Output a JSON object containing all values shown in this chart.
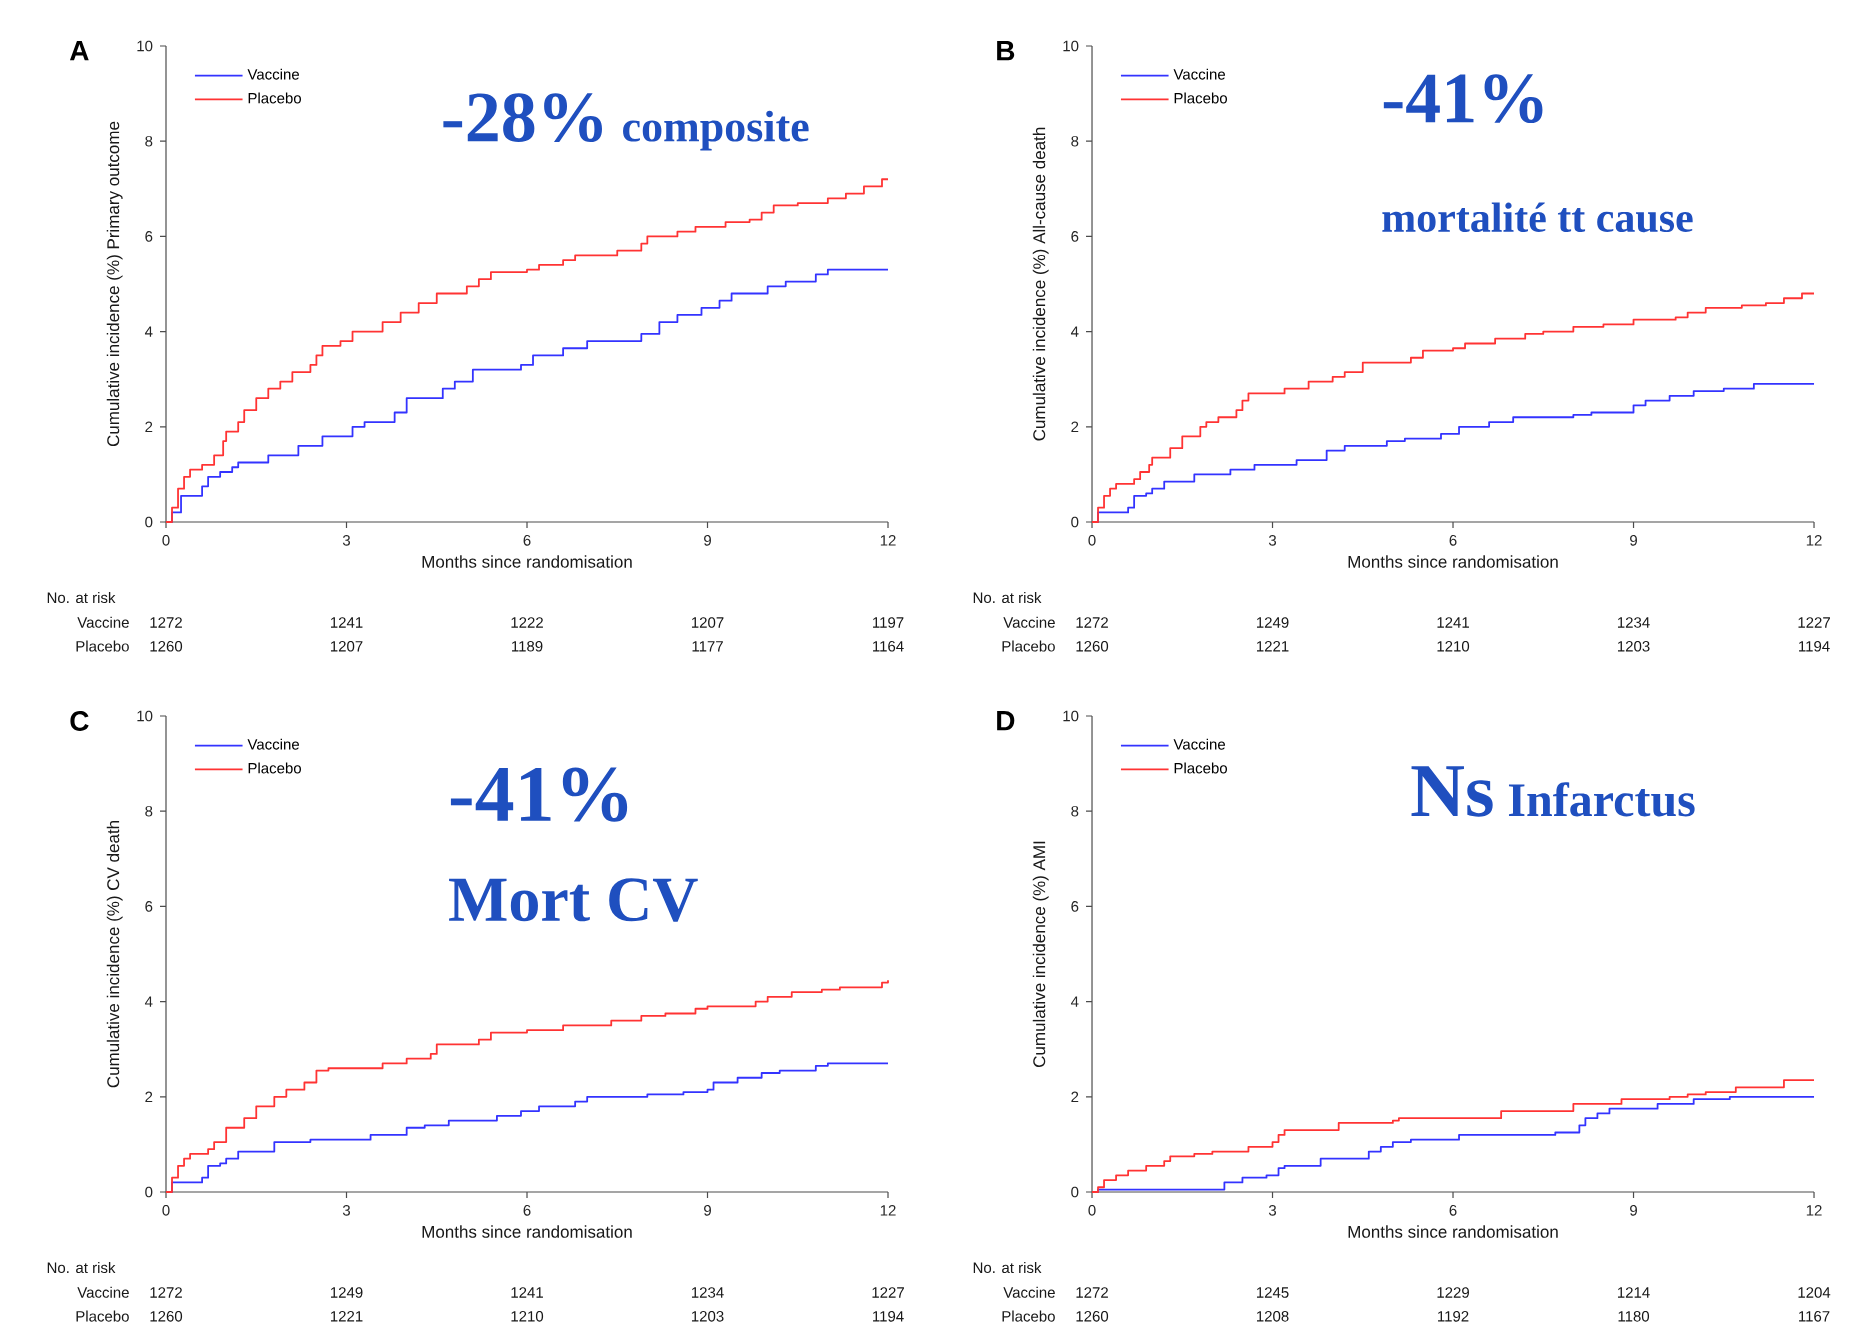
{
  "chart_data": [
    {
      "type": "step",
      "title": "A",
      "xlabel": "Months since randomisation",
      "ylabel": "Cumulative incidence (%)  Primary outcome",
      "xlim": [
        0,
        12
      ],
      "ylim": [
        0,
        10
      ],
      "xticks": [
        0,
        3,
        6,
        9,
        12
      ],
      "yticks": [
        0,
        2,
        4,
        6,
        8,
        10
      ],
      "legend": "top left",
      "series": [
        {
          "name": "Vaccine",
          "color": "#3333ff",
          "x": [
            0,
            0.1,
            0.25,
            0.6,
            0.7,
            0.9,
            1.1,
            1.2,
            1.7,
            2.2,
            2.6,
            3.1,
            3.3,
            3.8,
            4.0,
            4.6,
            4.8,
            5.1,
            5.9,
            6.1,
            6.6,
            7.0,
            7.9,
            8.2,
            8.5,
            8.9,
            9.2,
            9.4,
            10.0,
            10.3,
            10.8,
            11.0,
            12
          ],
          "values": [
            0,
            0.2,
            0.55,
            0.75,
            0.95,
            1.05,
            1.15,
            1.25,
            1.4,
            1.6,
            1.8,
            2.0,
            2.1,
            2.3,
            2.6,
            2.8,
            2.95,
            3.2,
            3.3,
            3.5,
            3.65,
            3.8,
            3.95,
            4.2,
            4.35,
            4.5,
            4.65,
            4.8,
            4.95,
            5.05,
            5.2,
            5.3,
            5.3
          ]
        },
        {
          "name": "Placebo",
          "color": "#ff3333",
          "x": [
            0,
            0.1,
            0.2,
            0.3,
            0.4,
            0.6,
            0.8,
            0.95,
            1.0,
            1.2,
            1.3,
            1.5,
            1.7,
            1.9,
            2.1,
            2.4,
            2.5,
            2.6,
            2.9,
            3.1,
            3.6,
            3.9,
            4.2,
            4.5,
            5.0,
            5.2,
            5.4,
            6.0,
            6.2,
            6.6,
            6.8,
            7.5,
            7.9,
            8.0,
            8.5,
            8.8,
            9.3,
            9.7,
            9.9,
            10.1,
            10.5,
            11.0,
            11.3,
            11.6,
            11.9,
            12
          ],
          "values": [
            0,
            0.3,
            0.7,
            0.95,
            1.1,
            1.2,
            1.4,
            1.7,
            1.9,
            2.1,
            2.35,
            2.6,
            2.8,
            2.95,
            3.15,
            3.3,
            3.5,
            3.7,
            3.8,
            4.0,
            4.2,
            4.4,
            4.6,
            4.8,
            4.95,
            5.1,
            5.25,
            5.3,
            5.4,
            5.5,
            5.6,
            5.7,
            5.85,
            6.0,
            6.1,
            6.2,
            6.3,
            6.35,
            6.5,
            6.65,
            6.7,
            6.8,
            6.9,
            7.05,
            7.2,
            7.2
          ]
        }
      ],
      "annotations": [
        "-28%",
        "composite",
        "No. at risk",
        "Vaccine",
        "1272",
        "1241",
        "1222",
        "1207",
        "1197",
        "Placebo",
        "1260",
        "1207",
        "1189",
        "1177",
        "1164"
      ]
    },
    {
      "type": "step",
      "title": "B",
      "xlabel": "Months since randomisation",
      "ylabel": "Cumulative incidence (%)  All-cause death",
      "xlim": [
        0,
        12
      ],
      "ylim": [
        0,
        10
      ],
      "xticks": [
        0,
        3,
        6,
        9,
        12
      ],
      "yticks": [
        0,
        2,
        4,
        6,
        8,
        10
      ],
      "legend": "top left",
      "series": [
        {
          "name": "Vaccine",
          "color": "#3333ff",
          "x": [
            0,
            0.1,
            0.6,
            0.7,
            0.9,
            1.0,
            1.2,
            1.7,
            2.3,
            2.7,
            3.4,
            3.9,
            4.2,
            4.9,
            5.2,
            5.8,
            6.1,
            6.6,
            7.0,
            8.0,
            8.3,
            9.0,
            9.2,
            9.6,
            10.0,
            10.5,
            11.0,
            12
          ],
          "values": [
            0,
            0.2,
            0.3,
            0.55,
            0.6,
            0.7,
            0.85,
            1.0,
            1.1,
            1.2,
            1.3,
            1.5,
            1.6,
            1.7,
            1.75,
            1.85,
            2.0,
            2.1,
            2.2,
            2.25,
            2.3,
            2.45,
            2.55,
            2.65,
            2.75,
            2.8,
            2.9,
            2.9
          ]
        },
        {
          "name": "Placebo",
          "color": "#ff3333",
          "x": [
            0,
            0.1,
            0.2,
            0.3,
            0.4,
            0.7,
            0.8,
            0.95,
            1.0,
            1.3,
            1.5,
            1.8,
            1.9,
            2.1,
            2.4,
            2.5,
            2.6,
            3.2,
            3.6,
            4.0,
            4.2,
            4.5,
            5.3,
            5.5,
            6.0,
            6.2,
            6.7,
            7.2,
            7.5,
            8.0,
            8.5,
            9.0,
            9.7,
            9.9,
            10.2,
            10.8,
            11.2,
            11.5,
            11.8,
            12
          ],
          "values": [
            0,
            0.3,
            0.55,
            0.7,
            0.8,
            0.9,
            1.05,
            1.2,
            1.35,
            1.55,
            1.8,
            2.0,
            2.1,
            2.2,
            2.35,
            2.55,
            2.7,
            2.8,
            2.95,
            3.05,
            3.15,
            3.35,
            3.45,
            3.6,
            3.65,
            3.75,
            3.85,
            3.95,
            4.0,
            4.1,
            4.15,
            4.25,
            4.3,
            4.4,
            4.5,
            4.55,
            4.6,
            4.7,
            4.8,
            4.8
          ]
        }
      ],
      "annotations": [
        "-41%",
        "mortalité tt cause",
        "No. at risk",
        "Vaccine",
        "1272",
        "1249",
        "1241",
        "1234",
        "1227",
        "Placebo",
        "1260",
        "1221",
        "1210",
        "1203",
        "1194"
      ]
    },
    {
      "type": "step",
      "title": "C",
      "xlabel": "Months since randomisation",
      "ylabel": "Cumulative incidence (%)  CV death",
      "xlim": [
        0,
        12
      ],
      "ylim": [
        0,
        10
      ],
      "xticks": [
        0,
        3,
        6,
        9,
        12
      ],
      "yticks": [
        0,
        2,
        4,
        6,
        8,
        10
      ],
      "legend": "top left",
      "series": [
        {
          "name": "Vaccine",
          "color": "#3333ff",
          "x": [
            0,
            0.1,
            0.6,
            0.7,
            0.9,
            1.0,
            1.2,
            1.8,
            2.4,
            3.4,
            4.0,
            4.3,
            4.7,
            5.5,
            5.9,
            6.2,
            6.8,
            7.0,
            8.0,
            8.6,
            9.0,
            9.1,
            9.5,
            9.9,
            10.2,
            10.8,
            11.0,
            12
          ],
          "values": [
            0,
            0.2,
            0.3,
            0.55,
            0.6,
            0.7,
            0.85,
            1.05,
            1.1,
            1.2,
            1.35,
            1.4,
            1.5,
            1.6,
            1.7,
            1.8,
            1.9,
            2.0,
            2.05,
            2.1,
            2.15,
            2.3,
            2.4,
            2.5,
            2.55,
            2.65,
            2.7,
            2.7
          ]
        },
        {
          "name": "Placebo",
          "color": "#ff3333",
          "x": [
            0,
            0.1,
            0.2,
            0.3,
            0.4,
            0.7,
            0.8,
            1.0,
            1.3,
            1.5,
            1.8,
            2.0,
            2.3,
            2.5,
            2.7,
            3.6,
            4.0,
            4.4,
            4.5,
            5.2,
            5.4,
            6.0,
            6.6,
            7.4,
            7.9,
            8.3,
            8.8,
            9.0,
            9.8,
            10.0,
            10.4,
            10.9,
            11.2,
            11.9,
            12
          ],
          "values": [
            0,
            0.3,
            0.55,
            0.7,
            0.8,
            0.9,
            1.05,
            1.35,
            1.55,
            1.8,
            2.0,
            2.15,
            2.3,
            2.55,
            2.6,
            2.7,
            2.8,
            2.9,
            3.1,
            3.2,
            3.35,
            3.4,
            3.5,
            3.6,
            3.7,
            3.75,
            3.85,
            3.9,
            4.0,
            4.1,
            4.2,
            4.25,
            4.3,
            4.4,
            4.45
          ]
        }
      ],
      "annotations": [
        "-41%",
        "Mort CV",
        "No. at risk",
        "Vaccine",
        "1272",
        "1249",
        "1241",
        "1234",
        "1227",
        "Placebo",
        "1260",
        "1221",
        "1210",
        "1203",
        "1194"
      ]
    },
    {
      "type": "step",
      "title": "D",
      "xlabel": "Months since randomisation",
      "ylabel": "Cumulative incidence (%)  AMI",
      "xlim": [
        0,
        12
      ],
      "ylim": [
        0,
        10
      ],
      "xticks": [
        0,
        3,
        6,
        9,
        12
      ],
      "yticks": [
        0,
        2,
        4,
        6,
        8,
        10
      ],
      "legend": "top left",
      "series": [
        {
          "name": "Vaccine",
          "color": "#3333ff",
          "x": [
            0,
            0.1,
            2.2,
            2.5,
            2.9,
            3.1,
            3.2,
            3.8,
            4.6,
            4.8,
            5.0,
            5.3,
            6.1,
            7.7,
            8.1,
            8.2,
            8.4,
            8.6,
            9.4,
            10.0,
            10.6,
            12
          ],
          "values": [
            0,
            0.05,
            0.2,
            0.3,
            0.35,
            0.5,
            0.55,
            0.7,
            0.85,
            0.95,
            1.05,
            1.1,
            1.2,
            1.25,
            1.4,
            1.55,
            1.65,
            1.75,
            1.85,
            1.95,
            2.0,
            2.0
          ]
        },
        {
          "name": "Placebo",
          "color": "#ff3333",
          "x": [
            0,
            0.1,
            0.2,
            0.4,
            0.6,
            0.9,
            1.2,
            1.3,
            1.7,
            2.0,
            2.6,
            3.0,
            3.1,
            3.2,
            4.1,
            5.0,
            5.1,
            6.8,
            8.0,
            8.8,
            9.6,
            9.9,
            10.2,
            10.7,
            11.5,
            12
          ],
          "values": [
            0,
            0.1,
            0.25,
            0.35,
            0.45,
            0.55,
            0.65,
            0.75,
            0.8,
            0.85,
            0.95,
            1.05,
            1.2,
            1.3,
            1.45,
            1.5,
            1.55,
            1.7,
            1.85,
            1.95,
            2.0,
            2.05,
            2.1,
            2.2,
            2.35,
            2.35
          ]
        }
      ],
      "annotations": [
        "Ns",
        "Infarctus",
        "No. at risk",
        "Vaccine",
        "1272",
        "1245",
        "1229",
        "1214",
        "1204",
        "Placebo",
        "1260",
        "1208",
        "1192",
        "1180",
        "1167"
      ]
    }
  ]
}
